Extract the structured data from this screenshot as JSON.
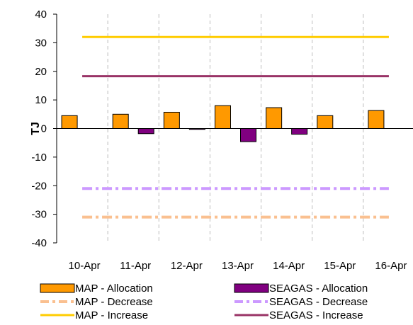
{
  "chart_data": {
    "type": "bar",
    "title": "",
    "xlabel": "",
    "ylabel": "TJ",
    "ylim": [
      -40,
      40
    ],
    "yticks": [
      40,
      30,
      20,
      10,
      0,
      -10,
      -20,
      -30,
      -40
    ],
    "categories": [
      "10-Apr",
      "11-Apr",
      "12-Apr",
      "13-Apr",
      "14-Apr",
      "15-Apr",
      "16-Apr"
    ],
    "grid": "vertical dashed",
    "legend_position": "bottom",
    "series": [
      {
        "name": "MAP - Allocation",
        "kind": "bar",
        "color": "#FF9900",
        "values": [
          4.5,
          5.0,
          5.7,
          8.0,
          7.3,
          4.5,
          6.3
        ]
      },
      {
        "name": "SEAGAS - Allocation",
        "kind": "bar",
        "color": "#800080",
        "values": [
          0,
          -1.8,
          -0.3,
          -4.6,
          -2.0,
          0,
          0
        ]
      },
      {
        "name": "MAP - Decrease",
        "kind": "line",
        "style": "dash-dot",
        "color": "#FAC090",
        "values": [
          -31,
          -31,
          -31,
          -31,
          -31,
          -31,
          -31
        ]
      },
      {
        "name": "SEAGAS - Decrease",
        "kind": "line",
        "style": "dash-dot",
        "color": "#CC99FF",
        "values": [
          -21,
          -21,
          -21,
          -21,
          -21,
          -21,
          -21
        ]
      },
      {
        "name": "MAP - Increase",
        "kind": "line",
        "style": "solid",
        "color": "#FFCC00",
        "values": [
          32,
          32,
          32,
          32,
          32,
          32,
          32
        ]
      },
      {
        "name": "SEAGAS - Increase",
        "kind": "line",
        "style": "solid",
        "color": "#993366",
        "values": [
          18.3,
          18.3,
          18.3,
          18.3,
          18.3,
          18.3,
          18.3
        ]
      }
    ]
  }
}
